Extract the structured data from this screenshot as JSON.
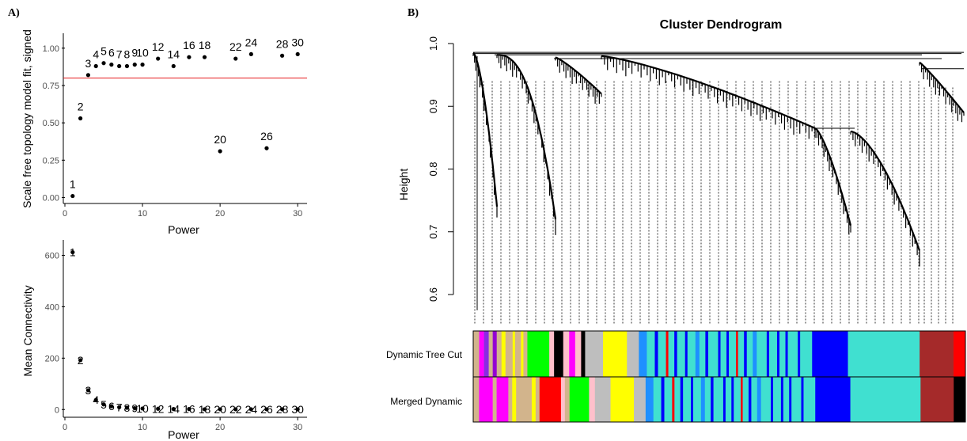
{
  "panels": {
    "a": "A)",
    "b": "B)"
  },
  "chart_data": [
    {
      "type": "scatter",
      "title": "",
      "xlabel": "Power",
      "ylabel": "Scale free topology model fit, signed",
      "xlim": [
        0,
        31
      ],
      "ylim": [
        -0.04,
        1.1
      ],
      "xticks": [
        "0",
        "10",
        "20",
        "30"
      ],
      "yticks": [
        "0.00",
        "0.25",
        "0.50",
        "0.75",
        "1.00"
      ],
      "threshold": 0.8,
      "threshold_color": "#e41a1c",
      "grid": false,
      "x": [
        1,
        2,
        3,
        4,
        5,
        6,
        7,
        8,
        9,
        10,
        12,
        14,
        16,
        18,
        20,
        22,
        24,
        26,
        28,
        30
      ],
      "y": [
        0.01,
        0.53,
        0.82,
        0.88,
        0.9,
        0.89,
        0.88,
        0.88,
        0.89,
        0.89,
        0.93,
        0.88,
        0.94,
        0.94,
        0.31,
        0.93,
        0.96,
        0.33,
        0.95,
        0.96
      ],
      "labels": [
        "1",
        "2",
        "3",
        "4",
        "5",
        "6",
        "7",
        "8",
        "9",
        "10",
        "12",
        "14",
        "16",
        "18",
        "20",
        "22",
        "24",
        "26",
        "28",
        "30"
      ]
    },
    {
      "type": "scatter",
      "title": "",
      "xlabel": "Power",
      "ylabel": "Mean Connectivity",
      "xlim": [
        0,
        31
      ],
      "ylim": [
        -30,
        660
      ],
      "xticks": [
        "0",
        "10",
        "20",
        "30"
      ],
      "yticks": [
        "0",
        "200",
        "400",
        "600"
      ],
      "grid": false,
      "x": [
        1,
        2,
        3,
        4,
        5,
        6,
        7,
        8,
        9,
        10,
        12,
        14,
        16,
        18,
        20,
        22,
        24,
        26,
        28,
        30
      ],
      "y": [
        612,
        192,
        75,
        37,
        20,
        13,
        9,
        7,
        5,
        4,
        3,
        2,
        2,
        1,
        1,
        1,
        1,
        1,
        1,
        1
      ],
      "labels": [
        "1",
        "2",
        "3",
        "4",
        "5",
        "6",
        "7",
        "8",
        "9",
        "10",
        "12",
        "14",
        "16",
        "18",
        "20",
        "22",
        "24",
        "26",
        "28",
        "30"
      ]
    },
    {
      "type": "dendrogram",
      "title": "Cluster Dendrogram",
      "ylabel": "Height",
      "ylim": [
        0.55,
        1.0
      ],
      "yticks": [
        "0.6",
        "0.7",
        "0.8",
        "0.9",
        "1.0"
      ],
      "rows": [
        "Dynamic Tree Cut",
        "Merged Dynamic"
      ],
      "dynamic_tree_cut": [
        [
          "#d2b48c",
          1.5
        ],
        [
          "#ff00ff",
          1.2
        ],
        [
          "#8a2be2",
          1.2
        ],
        [
          "#d2b48c",
          1
        ],
        [
          "#9400d3",
          1
        ],
        [
          "#d2b48c",
          1.2
        ],
        [
          "#ffff00",
          1
        ],
        [
          "#d2b48c",
          1.8
        ],
        [
          "#ffff00",
          0.6
        ],
        [
          "#d2b48c",
          1.5
        ],
        [
          "#ffff00",
          0.6
        ],
        [
          "#d2b48c",
          1
        ],
        [
          "#00ff00",
          5.5
        ],
        [
          "#ffc0cb",
          1.2
        ],
        [
          "#000000",
          2.3
        ],
        [
          "#ffc0cb",
          1.5
        ],
        [
          "#ff00ff",
          1.5
        ],
        [
          "#ffc0cb",
          1.5
        ],
        [
          "#000000",
          1
        ],
        [
          "#bebebe",
          4.5
        ],
        [
          "#ffff00",
          6
        ],
        [
          "#bebebe",
          3
        ],
        [
          "#1e90ff",
          2
        ],
        [
          "#40e0d0",
          2
        ],
        [
          "#0000ff",
          0.8
        ],
        [
          "#40e0d0",
          2
        ],
        [
          "#ff0000",
          0.6
        ],
        [
          "#40e0d0",
          1.5
        ],
        [
          "#0000ff",
          0.7
        ],
        [
          "#40e0d0",
          2
        ],
        [
          "#0000ff",
          0.6
        ],
        [
          "#40e0d0",
          2
        ],
        [
          "#1e90ff",
          1
        ],
        [
          "#40e0d0",
          1.5
        ],
        [
          "#0000ff",
          0.7
        ],
        [
          "#40e0d0",
          2.5
        ],
        [
          "#0000ff",
          0.6
        ],
        [
          "#40e0d0",
          1.5
        ],
        [
          "#0000ff",
          0.6
        ],
        [
          "#40e0d0",
          1.8
        ],
        [
          "#ff0000",
          0.5
        ],
        [
          "#40e0d0",
          1.5
        ],
        [
          "#0000ff",
          0.7
        ],
        [
          "#40e0d0",
          1.5
        ],
        [
          "#1e90ff",
          1
        ],
        [
          "#40e0d0",
          2.5
        ],
        [
          "#0000ff",
          0.6
        ],
        [
          "#40e0d0",
          2
        ],
        [
          "#0000ff",
          0.6
        ],
        [
          "#40e0d0",
          1.5
        ],
        [
          "#0000ff",
          0.6
        ],
        [
          "#40e0d0",
          2.5
        ],
        [
          "#0000ff",
          0.6
        ],
        [
          "#40e0d0",
          3
        ],
        [
          "#0000ff",
          9
        ],
        [
          "#40e0d0",
          18
        ],
        [
          "#a52a2a",
          8.5
        ],
        [
          "#ff0000",
          3
        ]
      ],
      "merged_dynamic": [
        [
          "#d2b48c",
          1.5
        ],
        [
          "#ff00ff",
          3.5
        ],
        [
          "#d2b48c",
          1
        ],
        [
          "#ff00ff",
          3
        ],
        [
          "#d2b48c",
          1
        ],
        [
          "#ffff00",
          1
        ],
        [
          "#d2b48c",
          4
        ],
        [
          "#ffff00",
          1
        ],
        [
          "#d2b48c",
          1
        ],
        [
          "#ff0000",
          5.5
        ],
        [
          "#ffc0cb",
          1
        ],
        [
          "#d2b48c",
          1.2
        ],
        [
          "#00ff00",
          5
        ],
        [
          "#ffc0cb",
          1.5
        ],
        [
          "#bebebe",
          4
        ],
        [
          "#ffff00",
          6
        ],
        [
          "#bebebe",
          3
        ],
        [
          "#1e90ff",
          2
        ],
        [
          "#40e0d0",
          2
        ],
        [
          "#0000ff",
          0.8
        ],
        [
          "#40e0d0",
          2
        ],
        [
          "#ff0000",
          0.6
        ],
        [
          "#40e0d0",
          1.5
        ],
        [
          "#0000ff",
          0.7
        ],
        [
          "#40e0d0",
          2
        ],
        [
          "#0000ff",
          0.6
        ],
        [
          "#40e0d0",
          2
        ],
        [
          "#1e90ff",
          1
        ],
        [
          "#40e0d0",
          1.5
        ],
        [
          "#0000ff",
          0.7
        ],
        [
          "#40e0d0",
          2.5
        ],
        [
          "#0000ff",
          0.6
        ],
        [
          "#40e0d0",
          1.5
        ],
        [
          "#0000ff",
          0.6
        ],
        [
          "#40e0d0",
          1.8
        ],
        [
          "#ff0000",
          0.5
        ],
        [
          "#40e0d0",
          1.5
        ],
        [
          "#0000ff",
          0.7
        ],
        [
          "#40e0d0",
          1.5
        ],
        [
          "#1e90ff",
          1
        ],
        [
          "#40e0d0",
          2.5
        ],
        [
          "#0000ff",
          0.6
        ],
        [
          "#40e0d0",
          2
        ],
        [
          "#0000ff",
          0.6
        ],
        [
          "#40e0d0",
          1.5
        ],
        [
          "#0000ff",
          0.6
        ],
        [
          "#40e0d0",
          2.5
        ],
        [
          "#0000ff",
          0.6
        ],
        [
          "#40e0d0",
          3
        ],
        [
          "#0000ff",
          9
        ],
        [
          "#40e0d0",
          18
        ],
        [
          "#a52a2a",
          8.5
        ],
        [
          "#000000",
          3
        ]
      ]
    }
  ]
}
